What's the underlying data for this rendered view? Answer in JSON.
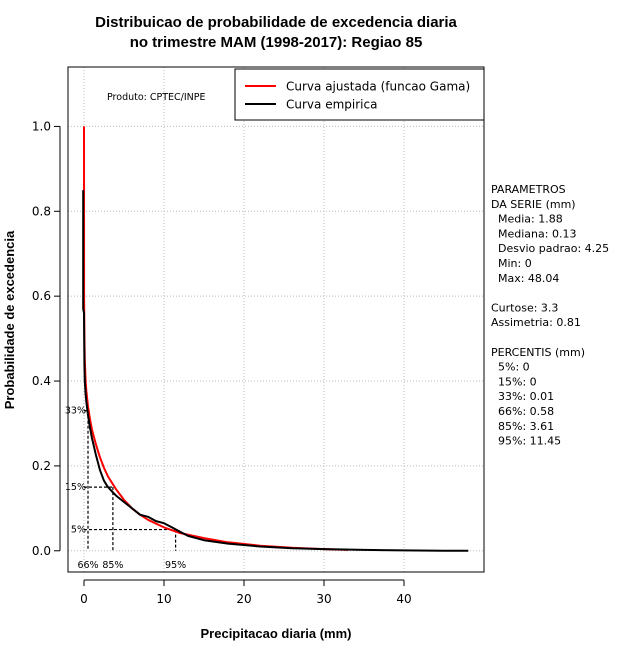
{
  "chart_data": {
    "type": "line",
    "title": [
      "Distribuicao de probabilidade de excedencia diaria",
      "no trimestre MAM (1998-2017): Regiao 85"
    ],
    "xlabel": "Precipitacao diaria (mm)",
    "ylabel": "Probabilidade de excedencia",
    "xlim": [
      -2,
      50
    ],
    "ylim": [
      -0.05,
      1.14
    ],
    "xticks": [
      0,
      10,
      20,
      30,
      40
    ],
    "yticks": [
      0.0,
      0.2,
      0.4,
      0.6,
      0.8,
      1.0
    ],
    "xtick_labels": [
      "0",
      "10",
      "20",
      "30",
      "40"
    ],
    "ytick_labels": [
      "0.0",
      "0.2",
      "0.4",
      "0.6",
      "0.8",
      "1.0"
    ],
    "grid": true,
    "produto": "Produto: CPTEC/INPE",
    "legend": [
      {
        "label": "Curva ajustada (funcao Gama)",
        "color": "#ff0000"
      },
      {
        "label": "Curva empirica",
        "color": "#000000"
      }
    ],
    "series": [
      {
        "name": "Curva ajustada (funcao Gama)",
        "color": "#ff0000",
        "x": [
          0.0,
          0.01,
          0.05,
          0.1,
          0.2,
          0.3,
          0.5,
          0.75,
          1,
          1.5,
          2,
          2.5,
          3,
          4,
          5,
          6,
          7,
          8,
          10,
          12,
          15,
          18,
          22,
          26,
          30,
          33
        ],
        "y": [
          1.0,
          0.6,
          0.5,
          0.45,
          0.4,
          0.375,
          0.34,
          0.31,
          0.285,
          0.25,
          0.22,
          0.195,
          0.175,
          0.145,
          0.12,
          0.1,
          0.085,
          0.073,
          0.055,
          0.042,
          0.03,
          0.02,
          0.012,
          0.007,
          0.004,
          0.002
        ]
      },
      {
        "name": "Curva empirica",
        "color": "#000000",
        "x": [
          -0.1,
          -0.1,
          0.0,
          0.02,
          0.05,
          0.1,
          0.2,
          0.3,
          0.5,
          0.75,
          1,
          1.5,
          2,
          2.5,
          3,
          3.5,
          4,
          5,
          6,
          7,
          8,
          9,
          10,
          11,
          12,
          13,
          15,
          18,
          22,
          26,
          30,
          35,
          40,
          45,
          48.04
        ],
        "y": [
          0.85,
          0.57,
          0.56,
          0.5,
          0.44,
          0.4,
          0.37,
          0.35,
          0.32,
          0.29,
          0.265,
          0.225,
          0.19,
          0.165,
          0.15,
          0.14,
          0.13,
          0.115,
          0.1,
          0.085,
          0.08,
          0.07,
          0.065,
          0.055,
          0.045,
          0.035,
          0.025,
          0.017,
          0.01,
          0.006,
          0.004,
          0.002,
          0.001,
          0.0,
          0.0
        ]
      }
    ],
    "percentile_markers": [
      {
        "label": "33%",
        "x": 0.5,
        "y": 0.33,
        "x_label": "66%"
      },
      {
        "label": "15%",
        "x": 3.61,
        "y": 0.15,
        "x_label": "85%"
      },
      {
        "label": "5%",
        "x": 11.45,
        "y": 0.05,
        "x_label": "95%"
      }
    ]
  },
  "side_panel": [
    "PARAMETROS",
    "DA SERIE (mm)",
    "  Media: 1.88",
    "  Mediana: 0.13",
    "  Desvio padrao: 4.25",
    "  Min: 0",
    "  Max: 48.04",
    "",
    "Curtose: 3.3",
    "Assimetria: 0.81",
    "",
    "PERCENTIS (mm)",
    "  5%: 0",
    "  15%: 0",
    "  33%: 0.01",
    "  66%: 0.58",
    "  85%: 3.61",
    "  95%: 11.45"
  ]
}
